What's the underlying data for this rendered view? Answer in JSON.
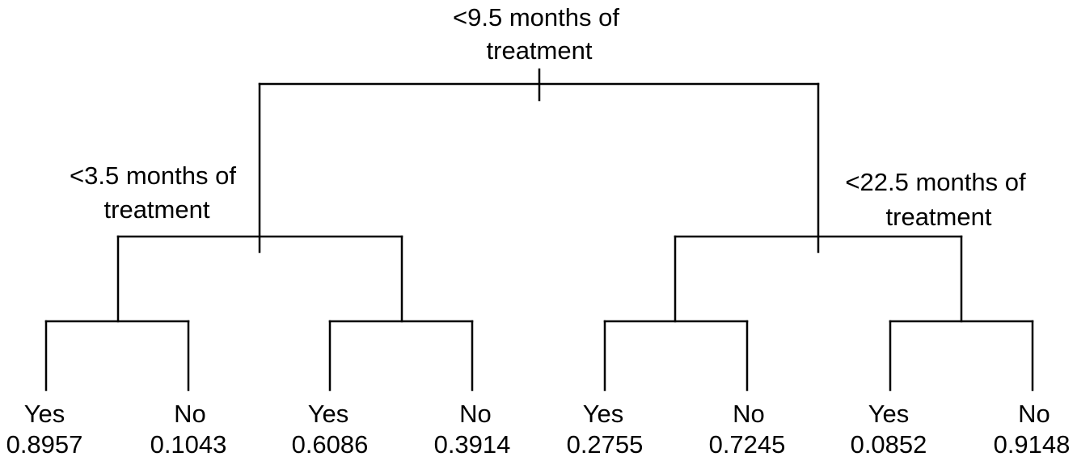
{
  "splits": {
    "root": [
      "<9.5 months of",
      "treatment"
    ],
    "left": [
      "<3.5 months of",
      "treatment"
    ],
    "right": [
      "<22.5 months of",
      "treatment"
    ]
  },
  "leaves": [
    {
      "label": "Yes",
      "value": "0.8957"
    },
    {
      "label": "No",
      "value": "0.1043"
    },
    {
      "label": "Yes",
      "value": "0.6086"
    },
    {
      "label": "No",
      "value": "0.3914"
    },
    {
      "label": "Yes",
      "value": "0.2755"
    },
    {
      "label": "No",
      "value": "0.7245"
    },
    {
      "label": "Yes",
      "value": "0.0852"
    },
    {
      "label": "No",
      "value": "0.9148"
    }
  ]
}
